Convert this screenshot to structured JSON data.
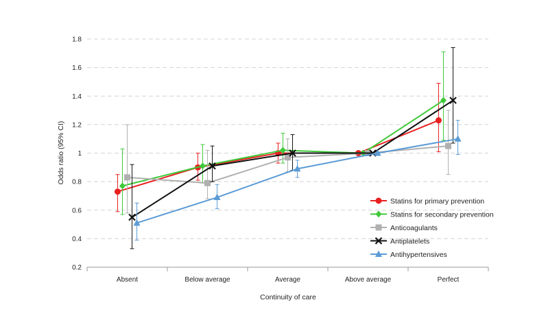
{
  "chart_data": {
    "type": "line",
    "xlabel": "Continuity of care",
    "ylabel": "Odds ratio (95% CI)",
    "ylim": [
      0.2,
      1.8
    ],
    "yticks": [
      "0.2",
      "0.4",
      "0.6",
      "0.8",
      "1",
      "1.2",
      "1.4",
      "1.6",
      "1.8"
    ],
    "grid": "horizontal dashed",
    "legend_position": "bottom-right",
    "categories": [
      "Absent",
      "Below average",
      "Average",
      "Above average",
      "Perfect"
    ],
    "series": [
      {
        "name": "Statins for primary prevention",
        "color": "#e8201f",
        "marker": "circle",
        "offset": -0.12,
        "values": [
          0.73,
          0.9,
          1.0,
          1.0,
          1.23
        ],
        "ci_low": [
          0.59,
          0.81,
          0.93,
          1.0,
          1.01
        ],
        "ci_high": [
          0.85,
          1.0,
          1.07,
          1.0,
          1.49
        ]
      },
      {
        "name": "Statins for secondary prevention",
        "color": "#3fc93a",
        "marker": "diamond",
        "offset": -0.06,
        "values": [
          0.77,
          0.91,
          1.02,
          1.0,
          1.37
        ],
        "ci_low": [
          0.57,
          0.79,
          0.93,
          1.0,
          1.09
        ],
        "ci_high": [
          1.03,
          1.06,
          1.14,
          1.0,
          1.71
        ]
      },
      {
        "name": "Anticoagulants",
        "color": "#b0b0b0",
        "marker": "square",
        "offset": 0.0,
        "values": [
          0.83,
          0.79,
          0.97,
          1.0,
          1.05
        ],
        "ci_low": [
          0.58,
          0.68,
          0.87,
          1.0,
          0.85
        ],
        "ci_high": [
          1.2,
          1.02,
          1.1,
          1.0,
          1.3
        ]
      },
      {
        "name": "Antiplatelets",
        "color": "#111111",
        "marker": "x",
        "offset": 0.06,
        "values": [
          0.55,
          0.91,
          1.0,
          1.0,
          1.37
        ],
        "ci_low": [
          0.33,
          0.8,
          0.88,
          1.0,
          1.07
        ],
        "ci_high": [
          0.92,
          1.05,
          1.13,
          1.0,
          1.74
        ]
      },
      {
        "name": "Antihypertensives",
        "color": "#5b9bd5",
        "marker": "triangle",
        "offset": 0.12,
        "values": [
          0.51,
          0.69,
          0.89,
          1.0,
          1.1
        ],
        "ci_low": [
          0.39,
          0.61,
          0.83,
          1.0,
          0.99
        ],
        "ci_high": [
          0.65,
          0.78,
          0.95,
          1.0,
          1.23
        ]
      }
    ]
  }
}
